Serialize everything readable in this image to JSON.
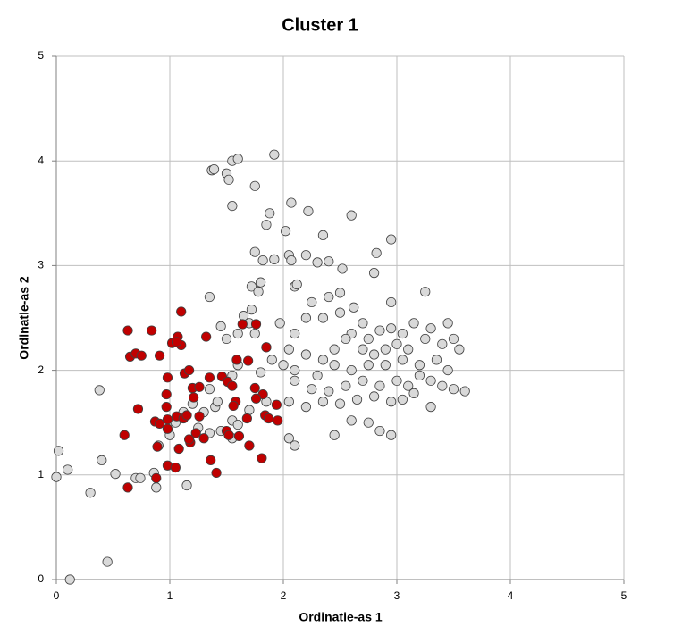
{
  "chart_data": {
    "type": "scatter",
    "title": "Cluster 1",
    "x_label": "Ordinatie-as 1",
    "y_label": "Ordinatie-as 2",
    "xlim": [
      0,
      5
    ],
    "ylim": [
      0,
      5
    ],
    "xticks": [
      0,
      1,
      2,
      3,
      4,
      5
    ],
    "yticks": [
      0,
      1,
      2,
      3,
      4,
      5
    ],
    "grid": true,
    "series": [
      {
        "color": "#d9d9d9",
        "x": [
          0.02,
          0.0,
          0.1,
          0.12,
          0.3,
          0.45,
          0.4,
          0.52,
          0.38,
          0.7,
          0.74,
          0.88,
          0.86,
          1.15,
          0.9,
          1.05,
          1.37,
          1.39,
          1.5,
          1.52,
          1.55,
          1.6,
          1.92,
          1.75,
          1.55,
          2.07,
          2.22,
          1.88,
          1.85,
          2.02,
          2.6,
          2.95,
          2.35,
          1.75,
          1.82,
          1.92,
          2.05,
          2.07,
          2.2,
          2.3,
          2.4,
          2.52,
          2.82,
          1.72,
          1.78,
          1.8,
          2.1,
          2.12,
          2.25,
          2.4,
          2.5,
          2.8,
          2.95,
          3.25,
          1.35,
          1.65,
          1.72,
          1.7,
          1.97,
          2.1,
          2.2,
          2.35,
          2.5,
          2.62,
          2.7,
          2.6,
          2.75,
          2.85,
          2.95,
          3.05,
          3.15,
          3.3,
          3.45,
          3.5,
          3.55,
          3.4,
          3.25,
          3.1,
          3.0,
          2.9,
          2.8,
          2.7,
          2.55,
          2.45,
          2.35,
          2.2,
          2.05,
          1.9,
          1.8,
          2.0,
          2.1,
          2.3,
          2.45,
          2.6,
          2.75,
          2.9,
          3.05,
          3.2,
          3.35,
          3.45,
          3.6,
          3.5,
          3.4,
          3.3,
          3.2,
          3.1,
          3.0,
          2.85,
          2.7,
          2.55,
          2.4,
          2.25,
          2.1,
          2.05,
          2.2,
          2.35,
          2.5,
          2.65,
          2.8,
          2.95,
          3.05,
          3.15,
          3.3,
          2.6,
          2.75,
          2.85,
          2.95,
          2.45,
          2.05,
          2.1,
          1.85,
          1.7,
          1.55,
          1.6,
          1.45,
          1.55,
          1.35,
          1.4,
          1.3,
          1.42,
          1.35,
          1.55,
          1.6,
          1.5,
          1.45,
          1.6,
          1.85,
          1.75,
          1.25,
          1.0,
          1.2,
          1.12
        ],
        "values": [
          1.23,
          0.98,
          1.05,
          0.0,
          0.83,
          0.17,
          1.14,
          1.01,
          1.81,
          0.97,
          0.97,
          0.88,
          1.02,
          0.9,
          1.28,
          1.5,
          3.91,
          3.92,
          3.88,
          3.82,
          4.0,
          4.02,
          4.06,
          3.76,
          3.57,
          3.6,
          3.52,
          3.5,
          3.39,
          3.33,
          3.48,
          3.25,
          3.29,
          3.13,
          3.05,
          3.06,
          3.1,
          3.05,
          3.1,
          3.03,
          3.04,
          2.97,
          3.12,
          2.8,
          2.75,
          2.84,
          2.8,
          2.82,
          2.65,
          2.7,
          2.74,
          2.93,
          2.65,
          2.75,
          2.7,
          2.52,
          2.58,
          2.45,
          2.45,
          2.35,
          2.5,
          2.5,
          2.55,
          2.6,
          2.45,
          2.35,
          2.3,
          2.38,
          2.4,
          2.35,
          2.45,
          2.4,
          2.45,
          2.3,
          2.2,
          2.25,
          2.3,
          2.2,
          2.25,
          2.2,
          2.15,
          2.2,
          2.3,
          2.2,
          2.1,
          2.15,
          2.2,
          2.1,
          1.98,
          2.05,
          2.0,
          1.95,
          2.05,
          2.0,
          2.05,
          2.05,
          2.1,
          2.05,
          2.1,
          2.0,
          1.8,
          1.82,
          1.85,
          1.9,
          1.95,
          1.85,
          1.9,
          1.85,
          1.9,
          1.85,
          1.8,
          1.82,
          1.9,
          1.7,
          1.65,
          1.7,
          1.68,
          1.72,
          1.75,
          1.7,
          1.72,
          1.78,
          1.65,
          1.52,
          1.5,
          1.42,
          1.38,
          1.38,
          1.35,
          1.28,
          1.7,
          1.62,
          1.52,
          1.48,
          1.42,
          1.35,
          1.4,
          1.65,
          1.6,
          1.7,
          1.82,
          1.95,
          2.05,
          2.3,
          2.42,
          2.35,
          2.22,
          2.35,
          1.45,
          1.38,
          1.68,
          1.6
        ]
      },
      {
        "color": "#c00000",
        "x": [
          0.63,
          0.65,
          0.7,
          0.75,
          0.84,
          0.91,
          1.1,
          1.02,
          1.07,
          1.1,
          1.06,
          1.32,
          1.64,
          1.76,
          1.59,
          1.69,
          1.85,
          0.98,
          0.97,
          0.97,
          1.13,
          1.17,
          1.2,
          1.21,
          1.26,
          1.35,
          1.46,
          1.51,
          1.55,
          1.75,
          1.82,
          1.76,
          1.58,
          1.56,
          0.72,
          0.87,
          0.91,
          0.98,
          0.98,
          1.06,
          1.12,
          1.15,
          1.26,
          1.23,
          1.18,
          1.17,
          1.3,
          1.5,
          1.52,
          1.61,
          1.7,
          1.68,
          1.84,
          1.87,
          1.94,
          1.95,
          1.81,
          0.6,
          0.89,
          1.08,
          1.36,
          1.41,
          0.98,
          1.05,
          0.88,
          0.63
        ],
        "values": [
          2.38,
          2.13,
          2.16,
          2.14,
          2.38,
          2.14,
          2.56,
          2.26,
          2.32,
          2.24,
          2.27,
          2.32,
          2.44,
          2.44,
          2.1,
          2.09,
          2.22,
          1.93,
          1.77,
          1.65,
          1.97,
          2.0,
          1.83,
          1.74,
          1.84,
          1.93,
          1.94,
          1.89,
          1.85,
          1.83,
          1.77,
          1.73,
          1.7,
          1.66,
          1.63,
          1.51,
          1.49,
          1.53,
          1.44,
          1.56,
          1.54,
          1.57,
          1.56,
          1.4,
          1.31,
          1.34,
          1.35,
          1.42,
          1.38,
          1.37,
          1.28,
          1.54,
          1.57,
          1.54,
          1.67,
          1.52,
          1.16,
          1.38,
          1.27,
          1.25,
          1.14,
          1.02,
          1.09,
          1.07,
          0.97,
          0.88
        ]
      }
    ]
  }
}
